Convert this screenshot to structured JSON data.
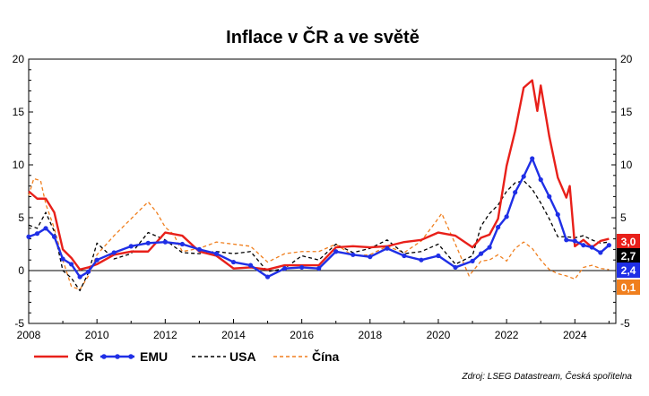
{
  "chart_data": {
    "type": "line",
    "title": "Inflace v ČR a ve světě",
    "source": "Zdroj: LSEG Datastream, Česká spořitelna",
    "ylim": [
      -5,
      20
    ],
    "xlim": [
      2008,
      2025.2
    ],
    "y_ticks": [
      "-5",
      "0",
      "5",
      "10",
      "15",
      "20"
    ],
    "x_ticks": [
      "2008",
      "2010",
      "2012",
      "2014",
      "2016",
      "2018",
      "2020",
      "2022",
      "2024"
    ],
    "grid": false,
    "legend_position": "bottom",
    "series": [
      {
        "name": "ČR",
        "color": "#e8201a",
        "style": "solid",
        "end_label": "3,0",
        "points": [
          [
            2008.0,
            7.5
          ],
          [
            2008.25,
            6.8
          ],
          [
            2008.5,
            6.8
          ],
          [
            2008.75,
            5.5
          ],
          [
            2009.0,
            2.0
          ],
          [
            2009.25,
            1.2
          ],
          [
            2009.5,
            0.1
          ],
          [
            2009.75,
            0.3
          ],
          [
            2010.0,
            0.6
          ],
          [
            2010.5,
            1.5
          ],
          [
            2011.0,
            1.8
          ],
          [
            2011.5,
            1.8
          ],
          [
            2012.0,
            3.6
          ],
          [
            2012.5,
            3.3
          ],
          [
            2013.0,
            1.8
          ],
          [
            2013.5,
            1.4
          ],
          [
            2014.0,
            0.2
          ],
          [
            2014.5,
            0.3
          ],
          [
            2015.0,
            0.1
          ],
          [
            2015.5,
            0.5
          ],
          [
            2016.0,
            0.5
          ],
          [
            2016.5,
            0.5
          ],
          [
            2017.0,
            2.2
          ],
          [
            2017.5,
            2.3
          ],
          [
            2018.0,
            2.2
          ],
          [
            2018.5,
            2.3
          ],
          [
            2019.0,
            2.7
          ],
          [
            2019.5,
            2.9
          ],
          [
            2020.0,
            3.6
          ],
          [
            2020.5,
            3.3
          ],
          [
            2021.0,
            2.2
          ],
          [
            2021.25,
            3.1
          ],
          [
            2021.5,
            3.4
          ],
          [
            2021.75,
            4.9
          ],
          [
            2022.0,
            9.9
          ],
          [
            2022.25,
            13.2
          ],
          [
            2022.5,
            17.3
          ],
          [
            2022.75,
            18.0
          ],
          [
            2022.9,
            15.1
          ],
          [
            2023.0,
            17.5
          ],
          [
            2023.25,
            12.7
          ],
          [
            2023.5,
            8.8
          ],
          [
            2023.75,
            6.9
          ],
          [
            2023.85,
            8.0
          ],
          [
            2024.0,
            2.3
          ],
          [
            2024.25,
            2.9
          ],
          [
            2024.5,
            2.2
          ],
          [
            2024.75,
            2.8
          ],
          [
            2025.0,
            3.0
          ]
        ]
      },
      {
        "name": "EMU",
        "color": "#1f2fe6",
        "style": "solid-markers",
        "end_label": "2,4",
        "points": [
          [
            2008.0,
            3.2
          ],
          [
            2008.25,
            3.5
          ],
          [
            2008.5,
            4.0
          ],
          [
            2008.75,
            3.2
          ],
          [
            2009.0,
            1.1
          ],
          [
            2009.25,
            0.6
          ],
          [
            2009.5,
            -0.6
          ],
          [
            2009.75,
            -0.1
          ],
          [
            2010.0,
            1.0
          ],
          [
            2010.5,
            1.7
          ],
          [
            2011.0,
            2.3
          ],
          [
            2011.5,
            2.6
          ],
          [
            2012.0,
            2.7
          ],
          [
            2012.5,
            2.5
          ],
          [
            2013.0,
            2.0
          ],
          [
            2013.5,
            1.6
          ],
          [
            2014.0,
            0.8
          ],
          [
            2014.5,
            0.5
          ],
          [
            2015.0,
            -0.6
          ],
          [
            2015.5,
            0.2
          ],
          [
            2016.0,
            0.3
          ],
          [
            2016.5,
            0.2
          ],
          [
            2017.0,
            1.8
          ],
          [
            2017.5,
            1.5
          ],
          [
            2018.0,
            1.3
          ],
          [
            2018.5,
            2.1
          ],
          [
            2019.0,
            1.4
          ],
          [
            2019.5,
            1.0
          ],
          [
            2020.0,
            1.4
          ],
          [
            2020.5,
            0.3
          ],
          [
            2021.0,
            0.9
          ],
          [
            2021.25,
            1.6
          ],
          [
            2021.5,
            2.2
          ],
          [
            2021.75,
            4.1
          ],
          [
            2022.0,
            5.1
          ],
          [
            2022.25,
            7.4
          ],
          [
            2022.5,
            8.9
          ],
          [
            2022.75,
            10.6
          ],
          [
            2023.0,
            8.6
          ],
          [
            2023.25,
            7.0
          ],
          [
            2023.5,
            5.3
          ],
          [
            2023.75,
            2.9
          ],
          [
            2024.0,
            2.8
          ],
          [
            2024.25,
            2.4
          ],
          [
            2024.5,
            2.2
          ],
          [
            2024.75,
            1.7
          ],
          [
            2025.0,
            2.4
          ]
        ]
      },
      {
        "name": "USA",
        "color": "#000000",
        "style": "dashed",
        "end_label": "2,7",
        "points": [
          [
            2008.0,
            4.3
          ],
          [
            2008.25,
            4.0
          ],
          [
            2008.5,
            5.5
          ],
          [
            2008.75,
            3.7
          ],
          [
            2009.0,
            0.0
          ],
          [
            2009.25,
            -0.7
          ],
          [
            2009.5,
            -1.9
          ],
          [
            2009.75,
            -0.2
          ],
          [
            2010.0,
            2.6
          ],
          [
            2010.5,
            1.1
          ],
          [
            2011.0,
            1.6
          ],
          [
            2011.5,
            3.6
          ],
          [
            2012.0,
            2.9
          ],
          [
            2012.5,
            1.7
          ],
          [
            2013.0,
            1.6
          ],
          [
            2013.5,
            1.8
          ],
          [
            2014.0,
            1.6
          ],
          [
            2014.5,
            1.8
          ],
          [
            2015.0,
            -0.1
          ],
          [
            2015.5,
            0.2
          ],
          [
            2016.0,
            1.4
          ],
          [
            2016.5,
            1.0
          ],
          [
            2017.0,
            2.5
          ],
          [
            2017.5,
            1.7
          ],
          [
            2018.0,
            2.1
          ],
          [
            2018.5,
            2.9
          ],
          [
            2019.0,
            1.6
          ],
          [
            2019.5,
            1.8
          ],
          [
            2020.0,
            2.5
          ],
          [
            2020.5,
            0.6
          ],
          [
            2021.0,
            1.4
          ],
          [
            2021.25,
            4.2
          ],
          [
            2021.5,
            5.4
          ],
          [
            2021.75,
            6.2
          ],
          [
            2022.0,
            7.5
          ],
          [
            2022.25,
            8.3
          ],
          [
            2022.5,
            8.5
          ],
          [
            2022.75,
            7.7
          ],
          [
            2023.0,
            6.4
          ],
          [
            2023.25,
            4.9
          ],
          [
            2023.5,
            3.2
          ],
          [
            2023.75,
            3.2
          ],
          [
            2024.0,
            3.1
          ],
          [
            2024.25,
            3.3
          ],
          [
            2024.5,
            2.9
          ],
          [
            2024.75,
            2.6
          ],
          [
            2025.0,
            2.7
          ]
        ]
      },
      {
        "name": "Čína",
        "color": "#f07f1e",
        "style": "dashed",
        "end_label": "0,1",
        "points": [
          [
            2008.0,
            7.1
          ],
          [
            2008.15,
            8.7
          ],
          [
            2008.35,
            8.5
          ],
          [
            2008.5,
            6.3
          ],
          [
            2008.75,
            4.0
          ],
          [
            2009.0,
            1.0
          ],
          [
            2009.25,
            -1.5
          ],
          [
            2009.5,
            -1.8
          ],
          [
            2009.75,
            -0.5
          ],
          [
            2010.0,
            1.5
          ],
          [
            2010.5,
            3.3
          ],
          [
            2011.0,
            4.9
          ],
          [
            2011.5,
            6.5
          ],
          [
            2011.75,
            5.5
          ],
          [
            2012.0,
            4.1
          ],
          [
            2012.25,
            3.4
          ],
          [
            2012.5,
            1.8
          ],
          [
            2013.0,
            2.1
          ],
          [
            2013.5,
            2.7
          ],
          [
            2014.0,
            2.5
          ],
          [
            2014.5,
            2.3
          ],
          [
            2015.0,
            0.8
          ],
          [
            2015.5,
            1.6
          ],
          [
            2016.0,
            1.8
          ],
          [
            2016.5,
            1.8
          ],
          [
            2017.0,
            2.5
          ],
          [
            2017.5,
            1.4
          ],
          [
            2018.0,
            1.5
          ],
          [
            2018.5,
            2.3
          ],
          [
            2019.0,
            1.7
          ],
          [
            2019.5,
            2.8
          ],
          [
            2019.9,
            4.5
          ],
          [
            2020.1,
            5.4
          ],
          [
            2020.5,
            2.5
          ],
          [
            2020.9,
            -0.5
          ],
          [
            2021.25,
            0.9
          ],
          [
            2021.5,
            1.0
          ],
          [
            2021.75,
            1.5
          ],
          [
            2022.0,
            0.9
          ],
          [
            2022.25,
            2.1
          ],
          [
            2022.5,
            2.7
          ],
          [
            2022.75,
            2.1
          ],
          [
            2023.0,
            1.0
          ],
          [
            2023.25,
            0.1
          ],
          [
            2023.5,
            -0.3
          ],
          [
            2023.75,
            -0.5
          ],
          [
            2024.0,
            -0.8
          ],
          [
            2024.25,
            0.3
          ],
          [
            2024.5,
            0.5
          ],
          [
            2024.75,
            0.2
          ],
          [
            2025.0,
            0.1
          ]
        ]
      }
    ]
  }
}
